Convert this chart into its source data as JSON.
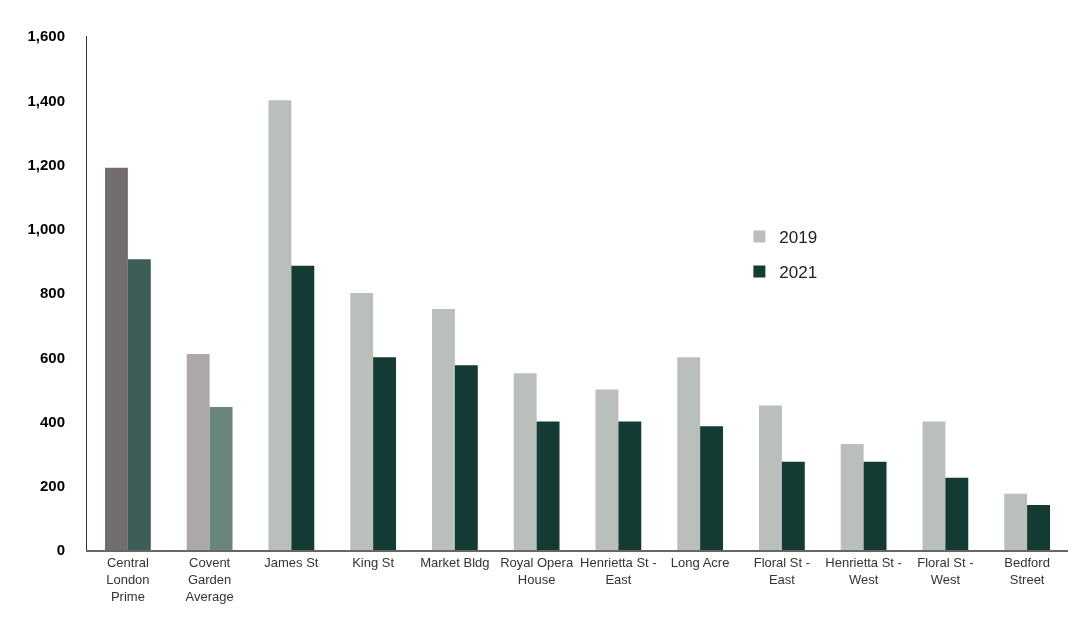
{
  "chart_data": {
    "type": "bar",
    "categories": [
      "Central London Prime",
      "Covent Garden Average",
      "James St",
      "King St",
      "Market Bldg",
      "Royal Opera House",
      "Henrietta St - East",
      "Long Acre",
      "Floral St - East",
      "Henrietta St - West",
      "Floral St - West",
      "Bedford Street"
    ],
    "series": [
      {
        "name": "2019",
        "color": "#bbbfbb",
        "colors": [
          "#736e6d",
          "#aca8a7",
          "#bbbfbb",
          "#bbbfbb",
          "#bbbfbb",
          "#bbbfbb",
          "#bbbfbb",
          "#bbbfbb",
          "#bbbfbb",
          "#bbbfbb",
          "#bbbfbb",
          "#bbbfbb"
        ],
        "values": [
          1190,
          610,
          1400,
          800,
          750,
          550,
          500,
          600,
          450,
          330,
          400,
          175
        ]
      },
      {
        "name": "2021",
        "color": "#133b33",
        "colors": [
          "#3d5e56",
          "#6a857d",
          "#133b33",
          "#133b33",
          "#133b33",
          "#133b33",
          "#133b33",
          "#133b33",
          "#133b33",
          "#133b33",
          "#133b33",
          "#133b33"
        ],
        "values": [
          905,
          445,
          885,
          600,
          575,
          400,
          400,
          385,
          275,
          275,
          225,
          140
        ]
      }
    ],
    "ylim": [
      0,
      1600
    ],
    "yticks": [
      0,
      200,
      400,
      600,
      800,
      {
        "value": 1000,
        "label": "1,000"
      },
      {
        "value": 1200,
        "label": "1,200"
      },
      {
        "value": 1400,
        "label": "1,400"
      },
      {
        "value": 1600,
        "label": "1,600"
      }
    ],
    "legend": "right"
  }
}
